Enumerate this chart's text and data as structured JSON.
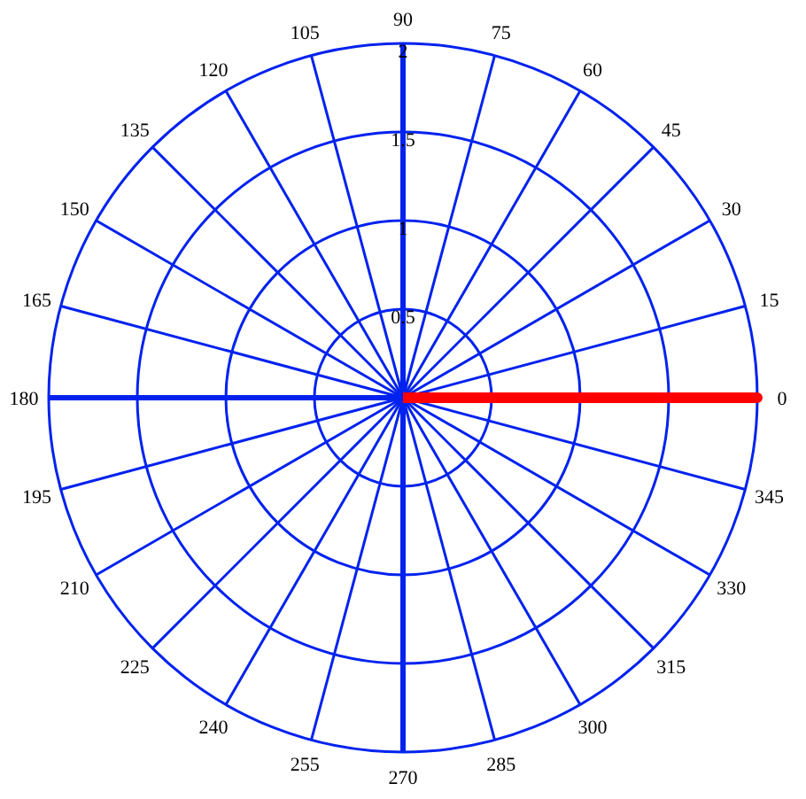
{
  "chart_data": {
    "type": "radar",
    "categories": [
      "90",
      "75",
      "60",
      "45",
      "30",
      "15",
      "0",
      "345",
      "330",
      "315",
      "300",
      "285",
      "270",
      "255",
      "240",
      "225",
      "210",
      "195",
      "180",
      "165",
      "150",
      "135",
      "120",
      "105"
    ],
    "series": [
      {
        "color": "#ff0000",
        "values": [
          0,
          0,
          0,
          0,
          0,
          0,
          2,
          0,
          0,
          0,
          0,
          0,
          0,
          0,
          0,
          0,
          0,
          0,
          0,
          0,
          0,
          0,
          0,
          0
        ]
      }
    ],
    "ylim": [
      0,
      2
    ],
    "yticks": [
      0.5,
      1,
      1.5,
      2
    ],
    "grid": true
  }
}
